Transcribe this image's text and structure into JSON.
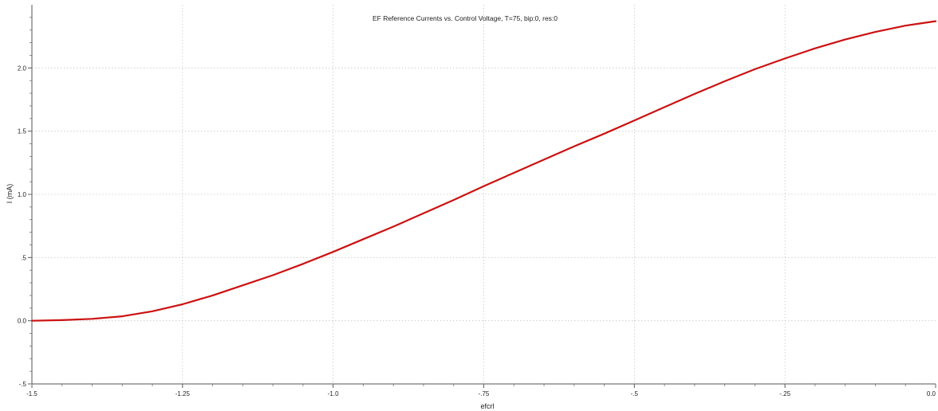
{
  "chart_data": {
    "type": "line",
    "title": "EF Reference Currents vs. Control Voltage, T=75, bip:0, res:0",
    "xlabel": "efcrl",
    "ylabel": "I (mA)",
    "xlim": [
      -1.5,
      0.0
    ],
    "ylim": [
      -0.5,
      2.5
    ],
    "x_ticks": [
      {
        "value": -1.5,
        "label": "-1.5"
      },
      {
        "value": -1.25,
        "label": "-1.25"
      },
      {
        "value": -1.0,
        "label": "-1.0"
      },
      {
        "value": -0.75,
        "label": "-.75"
      },
      {
        "value": -0.5,
        "label": "-.5"
      },
      {
        "value": -0.25,
        "label": "-.25"
      },
      {
        "value": 0.0,
        "label": "0.0"
      }
    ],
    "y_ticks": [
      {
        "value": -0.5,
        "label": "-.5"
      },
      {
        "value": 0.0,
        "label": "0.0"
      },
      {
        "value": 0.5,
        "label": ".5"
      },
      {
        "value": 1.0,
        "label": "1.0"
      },
      {
        "value": 1.5,
        "label": "1.5"
      },
      {
        "value": 2.0,
        "label": "2.0"
      }
    ],
    "grid": true,
    "series": [
      {
        "color": "#cc1111",
        "x": [
          -1.5,
          -1.45,
          -1.4,
          -1.35,
          -1.3,
          -1.25,
          -1.2,
          -1.15,
          -1.1,
          -1.05,
          -1.0,
          -0.95,
          -0.9,
          -0.85,
          -0.8,
          -0.75,
          -0.7,
          -0.65,
          -0.6,
          -0.55,
          -0.5,
          -0.45,
          -0.4,
          -0.35,
          -0.3,
          -0.25,
          -0.2,
          -0.15,
          -0.1,
          -0.05,
          0.0
        ],
        "y": [
          0.0,
          0.005,
          0.015,
          0.035,
          0.075,
          0.13,
          0.2,
          0.28,
          0.36,
          0.45,
          0.545,
          0.645,
          0.745,
          0.85,
          0.955,
          1.065,
          1.17,
          1.275,
          1.38,
          1.48,
          1.585,
          1.69,
          1.795,
          1.895,
          1.99,
          2.075,
          2.155,
          2.225,
          2.285,
          2.335,
          2.37
        ]
      }
    ]
  }
}
